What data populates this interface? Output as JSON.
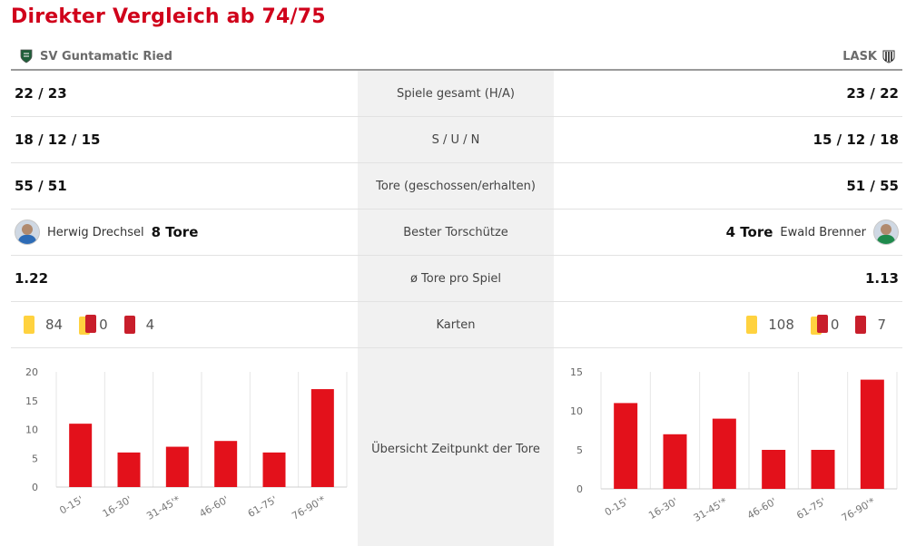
{
  "title": "Direkter Vergleich ab 74/75",
  "teams": {
    "left": "SV Guntamatic Ried",
    "right": "LASK"
  },
  "rows": [
    {
      "left": "22 / 23",
      "label": "Spiele gesamt (H/A)",
      "right": "23 / 22"
    },
    {
      "left": "18 / 12 / 15",
      "label": "S / U / N",
      "right": "15 / 12 / 18"
    },
    {
      "left": "55 / 51",
      "label": "Tore (geschossen/erhalten)",
      "right": "51 / 55"
    }
  ],
  "scorer": {
    "label": "Bester Torschütze",
    "left_name": "Herwig Drechsel",
    "left_goals": "8 Tore",
    "right_name": "Ewald Brenner",
    "right_goals": "4 Tore"
  },
  "avg": {
    "label": "ø Tore pro Spiel",
    "left": "1.22",
    "right": "1.13"
  },
  "cards": {
    "label": "Karten",
    "left": {
      "yellow": "84",
      "yellowred": "0",
      "red": "4"
    },
    "right": {
      "yellow": "108",
      "yellowred": "0",
      "red": "7"
    }
  },
  "chart_section_label": "Übersicht Zeitpunkt der Tore",
  "colors": {
    "accent": "#d0021b",
    "bar": "#e3111b"
  },
  "chart_data": [
    {
      "type": "bar",
      "categories": [
        "0-15'",
        "16-30'",
        "31-45'*",
        "46-60'",
        "61-75'",
        "76-90'*"
      ],
      "values": [
        11,
        6,
        7,
        8,
        6,
        17
      ],
      "ylim": [
        0,
        20
      ],
      "yticks": [
        0,
        5,
        10,
        15,
        20
      ],
      "grid": true
    },
    {
      "type": "bar",
      "categories": [
        "0-15'",
        "16-30'",
        "31-45'*",
        "46-60'",
        "61-75'",
        "76-90'*"
      ],
      "values": [
        11,
        7,
        9,
        5,
        5,
        14
      ],
      "ylim": [
        0,
        15
      ],
      "yticks": [
        0,
        5,
        10,
        15
      ],
      "grid": true
    }
  ]
}
